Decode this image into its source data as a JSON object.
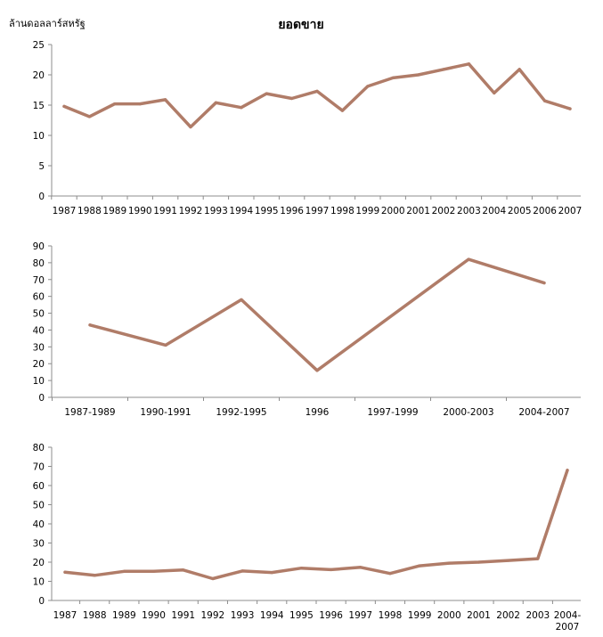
{
  "title": "ยอดขาย",
  "ylabel": "ล้านดอลลาร์สหรัฐ",
  "colors": {
    "line": "#b07c68",
    "axis": "#8c8c8c"
  },
  "chart_data": [
    {
      "type": "line",
      "title": "ยอดขาย",
      "ylabel": "ล้านดอลลาร์สหรัฐ",
      "xlabel": "",
      "ylim": [
        0,
        25
      ],
      "yticks": [
        0,
        5,
        10,
        15,
        20,
        25
      ],
      "categories": [
        "1987",
        "1988",
        "1989",
        "1990",
        "1991",
        "1992",
        "1993",
        "1994",
        "1995",
        "1996",
        "1997",
        "1998",
        "1999",
        "2000",
        "2001",
        "2002",
        "2003",
        "2004",
        "2005",
        "2006",
        "2007"
      ],
      "series": [
        {
          "values": [
            14.8,
            13.1,
            15.2,
            15.2,
            15.9,
            11.4,
            15.4,
            14.6,
            16.9,
            16.1,
            17.3,
            14.1,
            18.1,
            19.5,
            20.0,
            20.9,
            21.8,
            17.0,
            20.9,
            15.7,
            14.4
          ]
        }
      ],
      "grid": false
    },
    {
      "type": "line",
      "title": "",
      "xlabel": "",
      "ylabel": "",
      "ylim": [
        0,
        90
      ],
      "yticks": [
        0,
        10,
        20,
        30,
        40,
        50,
        60,
        70,
        80,
        90
      ],
      "categories": [
        "1987-1989",
        "1990-1991",
        "1992-1995",
        "1996",
        "1997-1999",
        "2000-2003",
        "2004-2007"
      ],
      "series": [
        {
          "values": [
            43,
            31,
            58,
            16,
            null,
            82,
            68
          ]
        }
      ],
      "grid": false
    },
    {
      "type": "line",
      "title": "",
      "xlabel": "",
      "ylabel": "",
      "ylim": [
        0,
        80
      ],
      "yticks": [
        0,
        10,
        20,
        30,
        40,
        50,
        60,
        70,
        80
      ],
      "categories": [
        "1987",
        "1988",
        "1989",
        "1990",
        "1991",
        "1992",
        "1993",
        "1994",
        "1995",
        "1996",
        "1997",
        "1998",
        "1999",
        "2000",
        "2001",
        "2002",
        "2003",
        "2004-\n2007"
      ],
      "series": [
        {
          "values": [
            14.8,
            13.1,
            15.2,
            15.2,
            15.9,
            11.4,
            15.4,
            14.6,
            16.9,
            16.1,
            17.3,
            14.1,
            18.1,
            19.5,
            20.0,
            20.9,
            21.8,
            68
          ]
        }
      ],
      "grid": false
    }
  ]
}
